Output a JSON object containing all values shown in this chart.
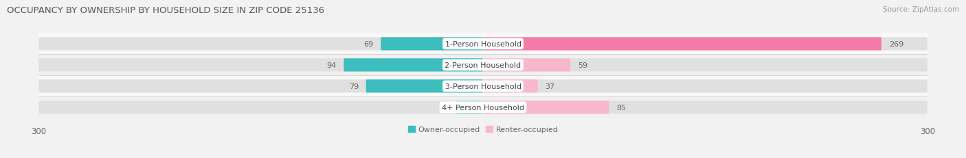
{
  "title": "OCCUPANCY BY OWNERSHIP BY HOUSEHOLD SIZE IN ZIP CODE 25136",
  "source": "Source: ZipAtlas.com",
  "categories": [
    "1-Person Household",
    "2-Person Household",
    "3-Person Household",
    "4+ Person Household"
  ],
  "owner_values": [
    69,
    94,
    79,
    0
  ],
  "renter_values": [
    269,
    59,
    37,
    85
  ],
  "owner_color": "#3dbdbd",
  "renter_color": "#f47aaa",
  "owner_color_4": "#8ed8d8",
  "renter_color_light": "#f8b8cc",
  "axis_limit": 300,
  "bar_height": 0.62,
  "background_color": "#f0f0f0",
  "bar_bg_color": "#e4e4e4",
  "row_bg_colors": [
    "#f8f8f8",
    "#efefef",
    "#f8f8f8",
    "#efefef"
  ],
  "title_fontsize": 9.5,
  "label_fontsize": 8.0,
  "tick_fontsize": 8.5,
  "legend_fontsize": 8.0
}
